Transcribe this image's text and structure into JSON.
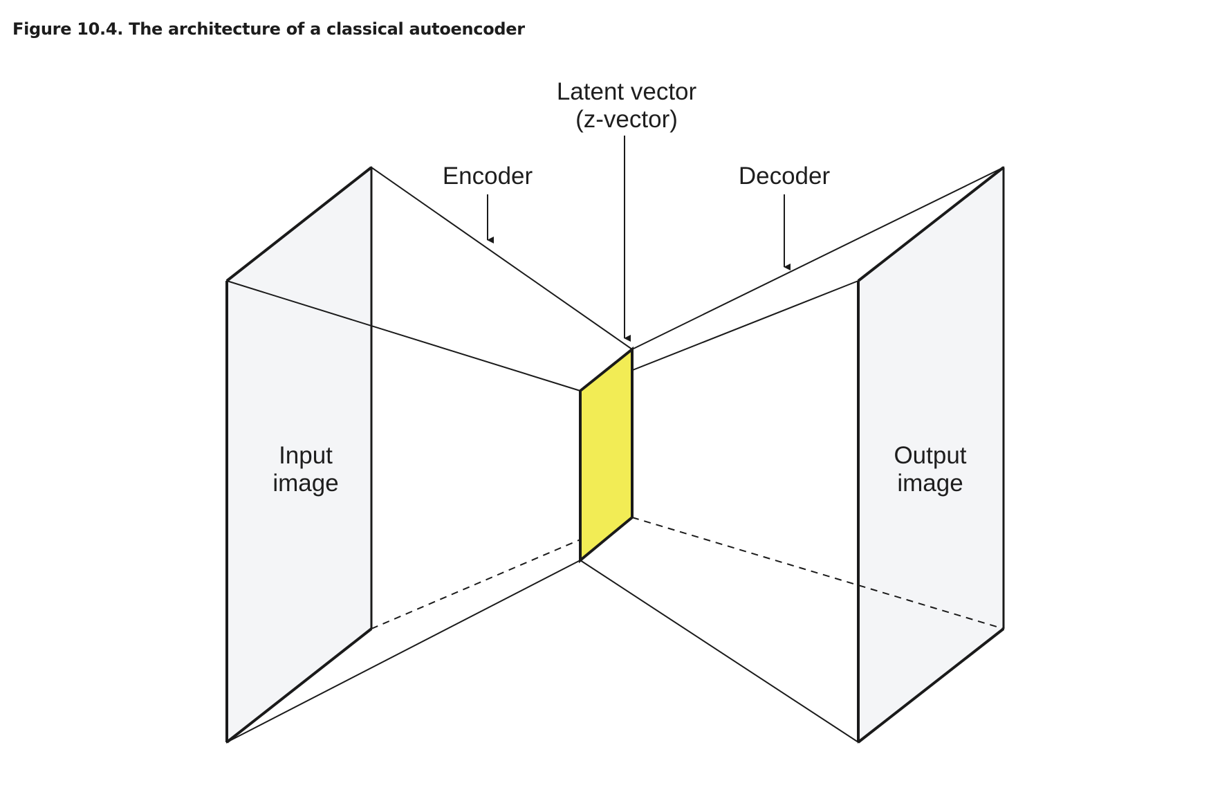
{
  "caption": "Figure 10.4. The architecture of a classical autoencoder",
  "labels": {
    "latent_line1": "Latent vector",
    "latent_line2": "(z-vector)",
    "encoder": "Encoder",
    "decoder": "Decoder",
    "input_line1": "Input",
    "input_line2": "image",
    "output_line1": "Output",
    "output_line2": "image"
  },
  "colors": {
    "latent_fill": "#f2ec55",
    "panel_fill": "#f4f5f7",
    "stroke": "#1a1a1a"
  }
}
